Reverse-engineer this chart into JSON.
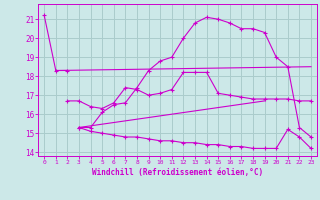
{
  "xlabel": "Windchill (Refroidissement éolien,°C)",
  "xlim": [
    -0.5,
    23.5
  ],
  "ylim": [
    13.8,
    21.8
  ],
  "yticks": [
    14,
    15,
    16,
    17,
    18,
    19,
    20,
    21
  ],
  "xticks": [
    0,
    1,
    2,
    3,
    4,
    5,
    6,
    7,
    8,
    9,
    10,
    11,
    12,
    13,
    14,
    15,
    16,
    17,
    18,
    19,
    20,
    21,
    22,
    23
  ],
  "bg_color": "#cce8e8",
  "grid_color": "#aacccc",
  "line_color": "#cc00cc",
  "curve1_x": [
    0,
    1,
    2
  ],
  "curve1_y": [
    21.2,
    18.3,
    18.3
  ],
  "curve2_x": [
    2,
    3,
    4,
    5,
    6,
    7,
    8,
    9,
    10,
    11,
    12,
    13,
    14,
    15,
    16,
    17,
    18,
    19,
    20,
    21,
    22,
    23
  ],
  "curve2_y": [
    16.7,
    16.7,
    16.4,
    16.3,
    16.6,
    17.4,
    17.3,
    17.0,
    17.1,
    17.3,
    18.2,
    18.2,
    18.2,
    17.1,
    17.0,
    16.9,
    16.8,
    16.8,
    16.8,
    16.8,
    16.7,
    16.7
  ],
  "curve3_x": [
    3,
    4,
    5,
    6,
    7,
    8,
    9,
    10,
    11,
    12,
    13,
    14,
    15,
    16,
    17,
    18,
    19,
    20,
    21,
    22,
    23
  ],
  "curve3_y": [
    15.3,
    15.3,
    16.1,
    16.5,
    16.6,
    17.4,
    18.3,
    18.8,
    19.0,
    20.0,
    20.8,
    21.1,
    21.0,
    20.8,
    20.5,
    20.5,
    20.3,
    19.0,
    18.5,
    15.3,
    14.8
  ],
  "curve4_x": [
    3,
    4,
    5,
    6,
    7,
    8,
    9,
    10,
    11,
    12,
    13,
    14,
    15,
    16,
    17,
    18,
    19,
    20,
    21,
    22,
    23
  ],
  "curve4_y": [
    15.3,
    15.1,
    15.0,
    14.9,
    14.8,
    14.8,
    14.7,
    14.6,
    14.6,
    14.5,
    14.5,
    14.4,
    14.4,
    14.3,
    14.3,
    14.2,
    14.2,
    14.2,
    15.2,
    14.8,
    14.2
  ],
  "line1_x": [
    1,
    23
  ],
  "line1_y": [
    18.3,
    18.5
  ],
  "line2_x": [
    3,
    19
  ],
  "line2_y": [
    15.3,
    16.7
  ]
}
